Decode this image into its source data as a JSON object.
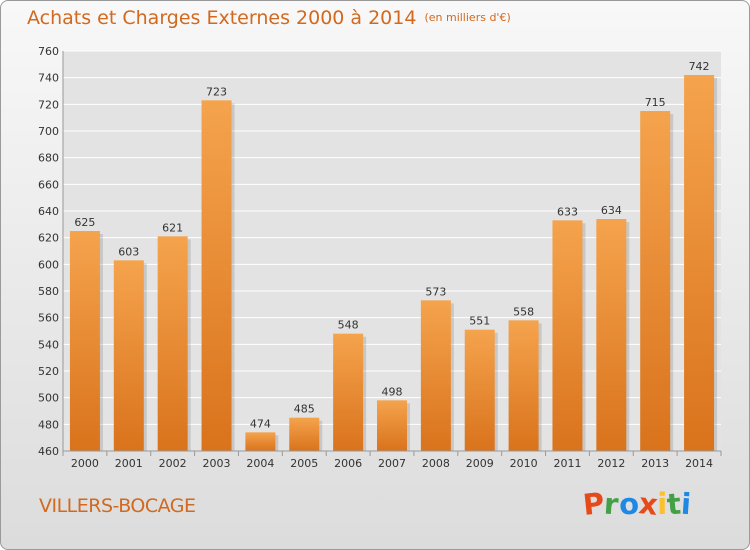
{
  "title": "Achats et Charges Externes 2000 à 2014",
  "unit_note": "(en milliers d'€)",
  "commune": "VILLERS-BOCAGE",
  "logo_text": "Proxiti",
  "logo_letter_colors": [
    "#e64a19",
    "#43a047",
    "#1e88e5",
    "#e64a19",
    "#fbc02d",
    "#43a047",
    "#1e88e5"
  ],
  "colors": {
    "accent": "#d2691e",
    "bar_light": "#f5a34d",
    "bar_dark": "#d9731c",
    "grid": "#ffffff",
    "axis_text": "#333333"
  },
  "chart_data": {
    "type": "bar",
    "categories": [
      "2000",
      "2001",
      "2002",
      "2003",
      "2004",
      "2005",
      "2006",
      "2007",
      "2008",
      "2009",
      "2010",
      "2011",
      "2012",
      "2013",
      "2014"
    ],
    "values": [
      625,
      603,
      621,
      723,
      474,
      485,
      548,
      498,
      573,
      551,
      558,
      633,
      634,
      715,
      742
    ],
    "ylim": [
      460,
      760
    ],
    "yticks": [
      460,
      480,
      500,
      520,
      540,
      560,
      580,
      600,
      620,
      640,
      660,
      680,
      700,
      720,
      740,
      760
    ],
    "grid": true,
    "xlabel": "",
    "ylabel": ""
  }
}
